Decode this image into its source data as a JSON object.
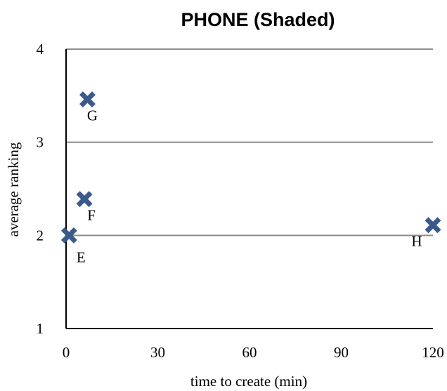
{
  "chart_data": {
    "type": "scatter",
    "title": "PHONE (Shaded)",
    "xlabel": "time to create (min)",
    "ylabel": "average ranking",
    "xlim": [
      0,
      120
    ],
    "ylim": [
      1,
      4
    ],
    "xticks": [
      0,
      30,
      60,
      90,
      120
    ],
    "yticks": [
      1,
      2,
      3,
      4
    ],
    "grid": "horizontal",
    "legend": "none",
    "marker_color": "#3b5a8c",
    "points": [
      {
        "label": "E",
        "x": 1,
        "y": 2.0
      },
      {
        "label": "F",
        "x": 6,
        "y": 2.39
      },
      {
        "label": "G",
        "x": 7,
        "y": 3.46
      },
      {
        "label": "H",
        "x": 120,
        "y": 2.11
      }
    ]
  }
}
